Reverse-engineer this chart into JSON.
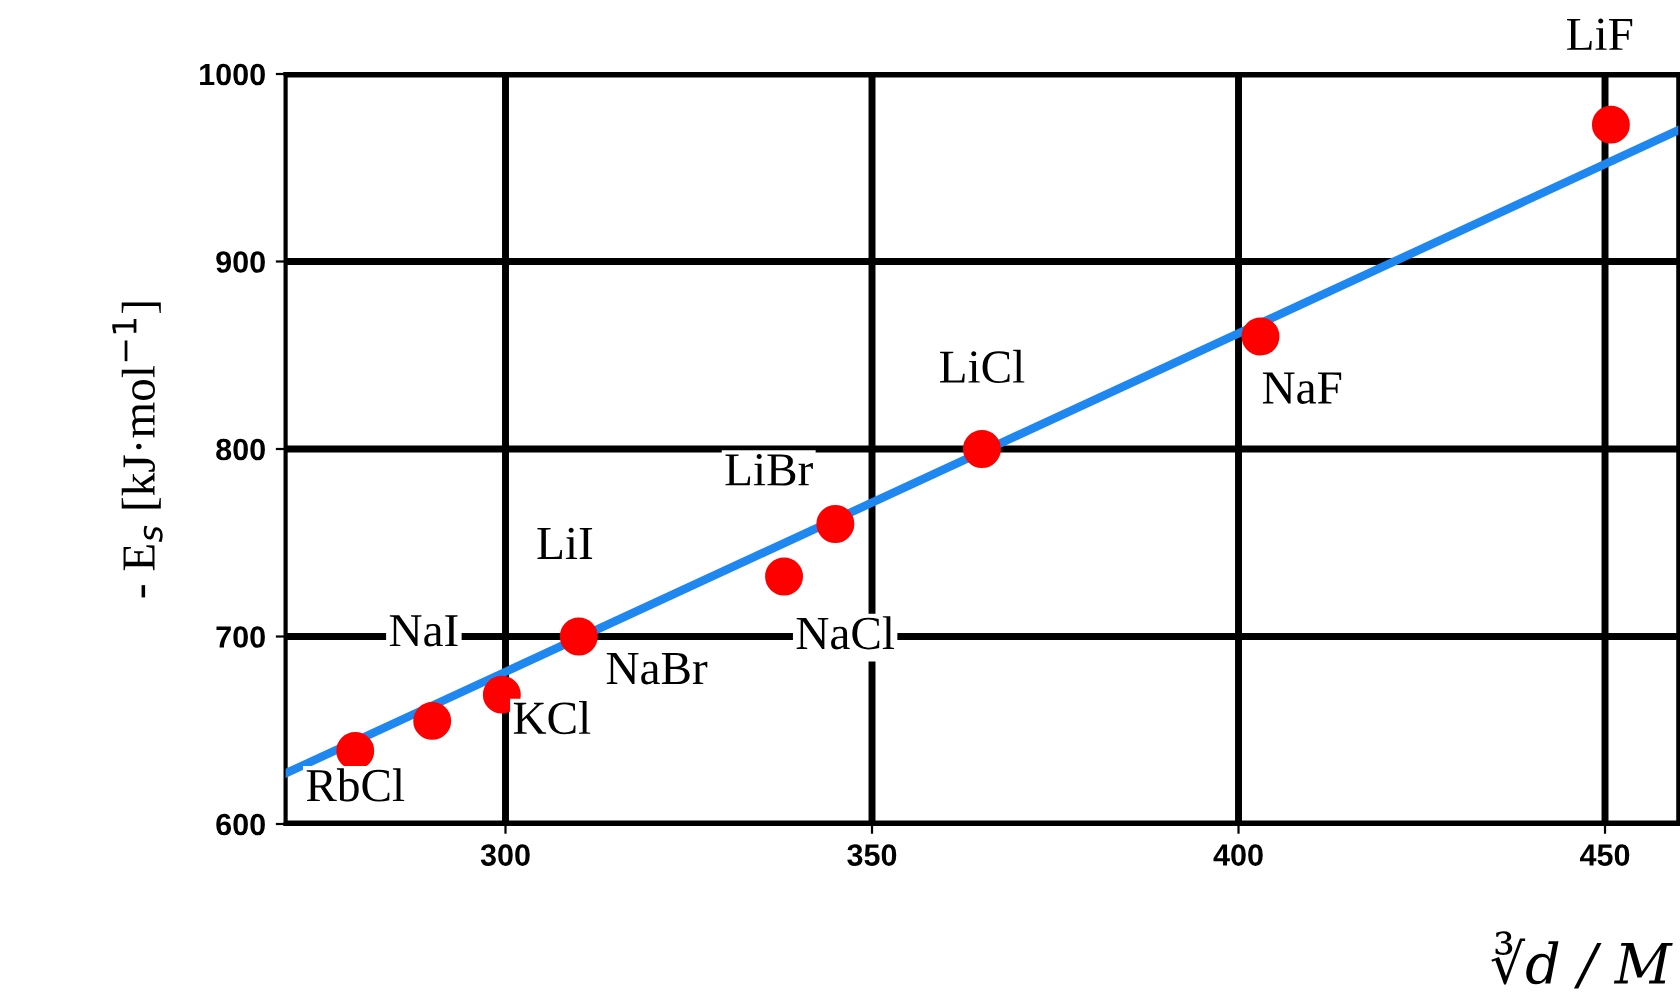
{
  "chart_data": {
    "type": "scatter",
    "xlabel": "∛d / M",
    "ylabel": "- E$_{s}$ [kJ·mol$^{−1}$]",
    "series": [
      {
        "marker": "circle",
        "color": "#ff0000",
        "x": [
          279.5,
          290,
          299.5,
          310,
          338,
          345,
          365,
          403,
          450.8
        ],
        "values": [
          639,
          655,
          669,
          700,
          732,
          760,
          800,
          860,
          973
        ]
      },
      {
        "type": "line",
        "color": "#1e88f0",
        "x": [
          270,
          460
        ],
        "values": [
          627,
          970
        ]
      }
    ],
    "annotations": [
      {
        "text": "RbCl",
        "x": 279.5,
        "y": 639
      },
      {
        "text": "NaI",
        "x": 290,
        "y": 655
      },
      {
        "text": "KCl",
        "x": 299.5,
        "y": 669
      },
      {
        "text": "LiI",
        "x": 310,
        "y": 700
      },
      {
        "text": "NaBr",
        "x": 310,
        "y": 700
      },
      {
        "text": "NaCl",
        "x": 338,
        "y": 732
      },
      {
        "text": "LiBr",
        "x": 345,
        "y": 760
      },
      {
        "text": "LiCl",
        "x": 365,
        "y": 800
      },
      {
        "text": "NaF",
        "x": 403,
        "y": 860
      },
      {
        "text": "LiF",
        "x": 450.8,
        "y": 973
      }
    ],
    "xlim": [
      270,
      460
    ],
    "ylim": [
      600,
      1000
    ],
    "xticks": [
      300,
      350,
      400,
      450
    ],
    "yticks": [
      600,
      700,
      800,
      900,
      1000
    ],
    "grid": true,
    "legend": false
  }
}
